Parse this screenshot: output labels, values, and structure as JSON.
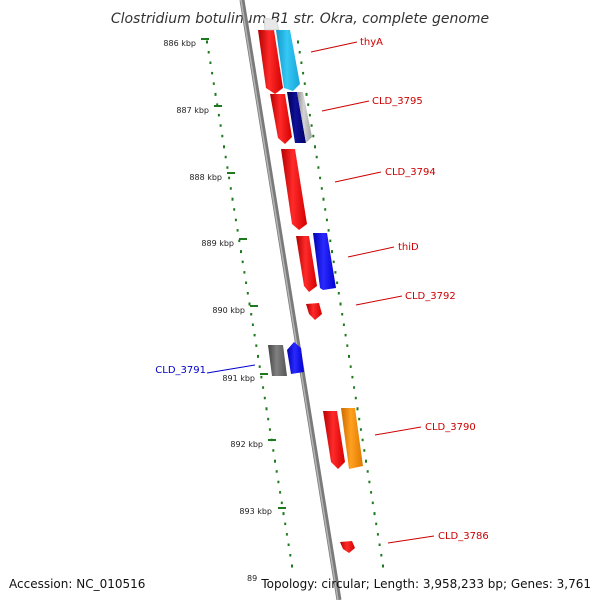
{
  "title": "Clostridium botulinum B1 str. Okra, complete genome",
  "ticks": [
    "886 kbp",
    "887 kbp",
    "888 kbp",
    "889 kbp",
    "890 kbp",
    "891 kbp",
    "892 kbp",
    "893 kbp",
    "89"
  ],
  "genes": [
    {
      "label": "thyA",
      "color": "#cc0000"
    },
    {
      "label": "CLD_3795",
      "color": "#cc0000"
    },
    {
      "label": "CLD_3794",
      "color": "#cc0000"
    },
    {
      "label": "thiD",
      "color": "#cc0000"
    },
    {
      "label": "CLD_3792",
      "color": "#cc0000"
    },
    {
      "label": "CLD_3791",
      "color": "#0000cc"
    },
    {
      "label": "CLD_3790",
      "color": "#cc0000"
    },
    {
      "label": "CLD_3786",
      "color": "#cc0000"
    }
  ],
  "footer": {
    "accession": "Accession: NC_010516",
    "topology": "Topology: circular; Length: 3,958,233 bp; Genes: 3,761"
  },
  "colors": {
    "backbone": "#8a8a8a",
    "gc_dots": "#1e7a1e",
    "cds_red": "#ff0000",
    "cds_cyan": "#22bbee",
    "cds_navy": "#000080",
    "cds_blue": "#0000ff",
    "cds_gray": "#666666",
    "cds_orange": "#ff8c00",
    "cds_silver": "#b0b0b0"
  }
}
